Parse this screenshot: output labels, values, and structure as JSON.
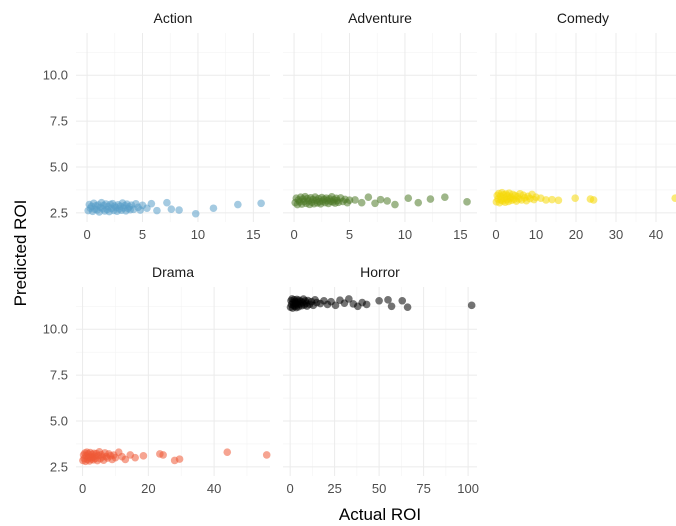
{
  "chart_data": {
    "type": "scatter",
    "xlabel": "Actual ROI",
    "ylabel": "Predicted ROI",
    "shared_y": {
      "lim": [
        2.0,
        12.3
      ],
      "ticks": [
        2.5,
        5.0,
        7.5,
        10.0
      ],
      "tick_labels": [
        "2.5",
        "5.0",
        "7.5",
        "10.0"
      ]
    },
    "grid": true,
    "legend": "none",
    "facets": [
      {
        "name": "Action",
        "color": "#5A9EC9",
        "xlim": [
          -1,
          16.5
        ],
        "xticks": [
          0,
          5,
          10,
          15
        ],
        "xtick_labels": [
          "0",
          "5",
          "10",
          "15"
        ],
        "points": [
          [
            0.1,
            2.62
          ],
          [
            0.2,
            2.95
          ],
          [
            0.3,
            2.75
          ],
          [
            0.4,
            2.85
          ],
          [
            0.5,
            2.58
          ],
          [
            0.6,
            3.02
          ],
          [
            0.7,
            2.7
          ],
          [
            0.8,
            2.88
          ],
          [
            0.9,
            2.66
          ],
          [
            1.0,
            2.93
          ],
          [
            1.1,
            2.55
          ],
          [
            1.2,
            2.8
          ],
          [
            1.3,
            3.05
          ],
          [
            1.4,
            2.72
          ],
          [
            1.5,
            2.9
          ],
          [
            1.6,
            2.6
          ],
          [
            1.7,
            2.98
          ],
          [
            1.8,
            2.68
          ],
          [
            1.9,
            2.84
          ],
          [
            2.0,
            2.57
          ],
          [
            2.1,
            2.96
          ],
          [
            2.2,
            2.74
          ],
          [
            2.3,
            3.0
          ],
          [
            2.4,
            2.63
          ],
          [
            2.5,
            2.87
          ],
          [
            2.6,
            2.78
          ],
          [
            2.7,
            2.59
          ],
          [
            2.8,
            2.94
          ],
          [
            2.9,
            2.71
          ],
          [
            3.0,
            2.86
          ],
          [
            3.1,
            2.64
          ],
          [
            3.2,
            3.03
          ],
          [
            3.3,
            2.76
          ],
          [
            3.4,
            2.89
          ],
          [
            3.5,
            2.61
          ],
          [
            3.6,
            2.97
          ],
          [
            3.7,
            2.73
          ],
          [
            3.8,
            2.83
          ],
          [
            3.9,
            2.67
          ],
          [
            4.0,
            2.92
          ],
          [
            4.2,
            2.69
          ],
          [
            4.4,
            2.99
          ],
          [
            4.6,
            2.8
          ],
          [
            4.8,
            2.65
          ],
          [
            5.0,
            2.91
          ],
          [
            5.4,
            2.75
          ],
          [
            5.8,
            3.0
          ],
          [
            6.3,
            2.62
          ],
          [
            7.2,
            3.05
          ],
          [
            7.6,
            2.7
          ],
          [
            8.3,
            2.65
          ],
          [
            9.8,
            2.45
          ],
          [
            11.4,
            2.75
          ],
          [
            13.6,
            2.95
          ],
          [
            15.7,
            3.02
          ]
        ]
      },
      {
        "name": "Adventure",
        "color": "#4F7A28",
        "xlim": [
          -1,
          16.5
        ],
        "xticks": [
          0,
          5,
          10,
          15
        ],
        "xtick_labels": [
          "0",
          "5",
          "10",
          "15"
        ],
        "points": [
          [
            0.1,
            3.05
          ],
          [
            0.2,
            3.3
          ],
          [
            0.3,
            2.95
          ],
          [
            0.4,
            3.2
          ],
          [
            0.5,
            3.1
          ],
          [
            0.6,
            3.35
          ],
          [
            0.7,
            2.98
          ],
          [
            0.8,
            3.25
          ],
          [
            0.9,
            3.12
          ],
          [
            1.0,
            3.38
          ],
          [
            1.1,
            3.02
          ],
          [
            1.2,
            3.28
          ],
          [
            1.3,
            3.15
          ],
          [
            1.4,
            2.96
          ],
          [
            1.5,
            3.32
          ],
          [
            1.6,
            3.08
          ],
          [
            1.7,
            3.22
          ],
          [
            1.8,
            3.0
          ],
          [
            1.9,
            3.36
          ],
          [
            2.0,
            3.18
          ],
          [
            2.1,
            3.04
          ],
          [
            2.2,
            3.27
          ],
          [
            2.3,
            3.11
          ],
          [
            2.4,
            2.99
          ],
          [
            2.5,
            3.33
          ],
          [
            2.6,
            3.14
          ],
          [
            2.7,
            3.24
          ],
          [
            2.8,
            3.06
          ],
          [
            2.9,
            3.3
          ],
          [
            3.0,
            3.16
          ],
          [
            3.1,
            3.01
          ],
          [
            3.2,
            3.26
          ],
          [
            3.3,
            3.13
          ],
          [
            3.4,
            3.37
          ],
          [
            3.5,
            3.09
          ],
          [
            3.6,
            3.21
          ],
          [
            3.7,
            3.03
          ],
          [
            3.8,
            3.29
          ],
          [
            3.9,
            3.17
          ],
          [
            4.0,
            3.07
          ],
          [
            4.2,
            3.31
          ],
          [
            4.4,
            3.12
          ],
          [
            4.6,
            3.23
          ],
          [
            4.8,
            3.05
          ],
          [
            5.0,
            3.19
          ],
          [
            5.5,
            3.2
          ],
          [
            6.1,
            3.05
          ],
          [
            6.7,
            3.35
          ],
          [
            7.3,
            3.02
          ],
          [
            7.8,
            3.22
          ],
          [
            8.4,
            3.15
          ],
          [
            9.1,
            2.95
          ],
          [
            10.3,
            3.3
          ],
          [
            11.2,
            3.05
          ],
          [
            12.3,
            3.25
          ],
          [
            13.6,
            3.35
          ],
          [
            15.6,
            3.1
          ]
        ]
      },
      {
        "name": "Comedy",
        "color": "#F5D90A",
        "xlim": [
          -1.5,
          45
        ],
        "xticks": [
          0,
          10,
          20,
          30,
          40
        ],
        "xtick_labels": [
          "0",
          "10",
          "20",
          "30",
          "40"
        ],
        "points": [
          [
            0.1,
            3.1
          ],
          [
            0.3,
            3.45
          ],
          [
            0.5,
            3.25
          ],
          [
            0.7,
            3.55
          ],
          [
            0.9,
            3.05
          ],
          [
            1.1,
            3.4
          ],
          [
            1.3,
            3.2
          ],
          [
            1.5,
            3.6
          ],
          [
            1.7,
            3.15
          ],
          [
            1.9,
            3.48
          ],
          [
            2.1,
            3.3
          ],
          [
            2.3,
            3.08
          ],
          [
            2.5,
            3.52
          ],
          [
            2.7,
            3.22
          ],
          [
            2.9,
            3.42
          ],
          [
            3.1,
            3.12
          ],
          [
            3.3,
            3.57
          ],
          [
            3.5,
            3.28
          ],
          [
            3.7,
            3.36
          ],
          [
            3.9,
            3.18
          ],
          [
            4.2,
            3.5
          ],
          [
            4.5,
            3.24
          ],
          [
            4.8,
            3.44
          ],
          [
            5.1,
            3.14
          ],
          [
            5.4,
            3.38
          ],
          [
            5.7,
            3.26
          ],
          [
            6.0,
            3.54
          ],
          [
            6.4,
            3.2
          ],
          [
            6.8,
            3.46
          ],
          [
            7.2,
            3.32
          ],
          [
            7.6,
            3.16
          ],
          [
            8.0,
            3.4
          ],
          [
            8.5,
            3.28
          ],
          [
            9.0,
            3.5
          ],
          [
            9.5,
            3.22
          ],
          [
            10.0,
            3.35
          ],
          [
            11.2,
            3.3
          ],
          [
            12.5,
            3.2
          ],
          [
            14.0,
            3.22
          ],
          [
            15.6,
            3.18
          ],
          [
            19.8,
            3.3
          ],
          [
            23.6,
            3.25
          ],
          [
            24.4,
            3.2
          ],
          [
            44.8,
            3.3
          ]
        ]
      },
      {
        "name": "Drama",
        "color": "#EE5A36",
        "xlim": [
          -2,
          57
        ],
        "xticks": [
          0,
          20,
          40
        ],
        "xtick_labels": [
          "0",
          "20",
          "40"
        ],
        "points": [
          [
            0.1,
            2.85
          ],
          [
            0.3,
            3.15
          ],
          [
            0.5,
            2.95
          ],
          [
            0.7,
            3.25
          ],
          [
            0.9,
            2.8
          ],
          [
            1.1,
            3.1
          ],
          [
            1.3,
            3.3
          ],
          [
            1.5,
            2.9
          ],
          [
            1.7,
            3.2
          ],
          [
            1.9,
            3.0
          ],
          [
            2.1,
            2.82
          ],
          [
            2.3,
            3.28
          ],
          [
            2.5,
            3.05
          ],
          [
            2.7,
            2.92
          ],
          [
            2.9,
            3.18
          ],
          [
            3.1,
            3.02
          ],
          [
            3.3,
            2.88
          ],
          [
            3.5,
            3.24
          ],
          [
            3.7,
            3.08
          ],
          [
            3.9,
            2.96
          ],
          [
            4.2,
            3.22
          ],
          [
            4.5,
            2.84
          ],
          [
            4.8,
            3.12
          ],
          [
            5.1,
            3.32
          ],
          [
            5.4,
            2.94
          ],
          [
            5.7,
            3.16
          ],
          [
            6.0,
            3.04
          ],
          [
            6.4,
            2.86
          ],
          [
            6.8,
            3.26
          ],
          [
            7.2,
            3.06
          ],
          [
            7.6,
            2.98
          ],
          [
            8.0,
            3.2
          ],
          [
            8.5,
            3.1
          ],
          [
            9.0,
            2.9
          ],
          [
            9.5,
            3.14
          ],
          [
            10.0,
            3.0
          ],
          [
            11.0,
            3.3
          ],
          [
            12.0,
            3.05
          ],
          [
            13.0,
            2.9
          ],
          [
            14.5,
            3.15
          ],
          [
            16.0,
            3.0
          ],
          [
            18.5,
            3.1
          ],
          [
            23.5,
            3.2
          ],
          [
            24.5,
            3.15
          ],
          [
            28.0,
            2.85
          ],
          [
            29.5,
            2.92
          ],
          [
            44.0,
            3.3
          ],
          [
            56.0,
            3.15
          ]
        ]
      },
      {
        "name": "Horror",
        "color": "#000000",
        "xlim": [
          -4,
          105
        ],
        "xticks": [
          0,
          25,
          50,
          75,
          100
        ],
        "xtick_labels": [
          "0",
          "25",
          "50",
          "75",
          "100"
        ],
        "points": [
          [
            0.2,
            11.2
          ],
          [
            0.5,
            11.55
          ],
          [
            0.8,
            11.35
          ],
          [
            1.1,
            11.65
          ],
          [
            1.4,
            11.15
          ],
          [
            1.7,
            11.45
          ],
          [
            2.0,
            11.3
          ],
          [
            2.3,
            11.6
          ],
          [
            2.6,
            11.25
          ],
          [
            2.9,
            11.5
          ],
          [
            3.2,
            11.4
          ],
          [
            3.5,
            11.18
          ],
          [
            3.8,
            11.62
          ],
          [
            4.1,
            11.33
          ],
          [
            4.4,
            11.48
          ],
          [
            4.7,
            11.22
          ],
          [
            5.0,
            11.58
          ],
          [
            5.5,
            11.38
          ],
          [
            6.0,
            11.52
          ],
          [
            6.5,
            11.28
          ],
          [
            7.0,
            11.44
          ],
          [
            7.5,
            11.64
          ],
          [
            8.0,
            11.32
          ],
          [
            8.5,
            11.54
          ],
          [
            9.0,
            11.42
          ],
          [
            9.5,
            11.26
          ],
          [
            10.0,
            11.56
          ],
          [
            11.0,
            11.36
          ],
          [
            12.0,
            11.5
          ],
          [
            13.0,
            11.3
          ],
          [
            14.0,
            11.6
          ],
          [
            15.0,
            11.45
          ],
          [
            17.0,
            11.4
          ],
          [
            19.0,
            11.55
          ],
          [
            21.0,
            11.35
          ],
          [
            23.0,
            11.5
          ],
          [
            25.5,
            11.3
          ],
          [
            28.0,
            11.58
          ],
          [
            30.5,
            11.42
          ],
          [
            33.0,
            11.65
          ],
          [
            35.5,
            11.38
          ],
          [
            38.0,
            11.25
          ],
          [
            40.5,
            11.45
          ],
          [
            43.0,
            11.35
          ],
          [
            50.0,
            11.55
          ],
          [
            55.0,
            11.6
          ],
          [
            57.0,
            11.25
          ],
          [
            63.0,
            11.55
          ],
          [
            66.0,
            11.2
          ],
          [
            102.0,
            11.3
          ]
        ]
      }
    ]
  }
}
